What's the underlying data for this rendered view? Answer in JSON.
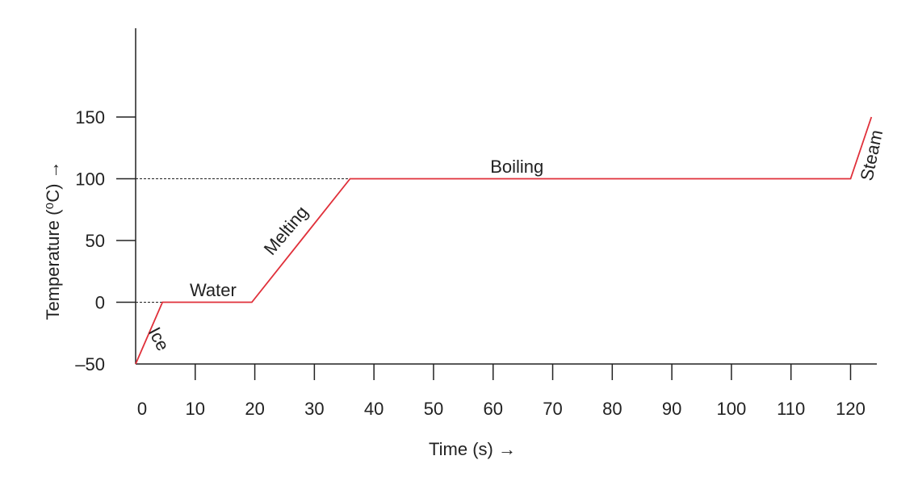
{
  "chart_data": {
    "type": "line",
    "title": "",
    "xlabel": "Time (s) →",
    "ylabel": "Temperature (⁰C) →",
    "xlim": [
      0,
      124
    ],
    "ylim": [
      -50,
      150
    ],
    "x_ticks": [
      "0",
      "10",
      "20",
      "30",
      "40",
      "50",
      "60",
      "70",
      "80",
      "90",
      "100",
      "110",
      "120"
    ],
    "y_ticks": [
      "–50",
      "0",
      "50",
      "100",
      "150"
    ],
    "x_tick_values": [
      0,
      10,
      20,
      30,
      40,
      50,
      60,
      70,
      80,
      90,
      100,
      110,
      120
    ],
    "y_tick_values": [
      -50,
      0,
      50,
      100,
      150
    ],
    "grid": false,
    "series": [
      {
        "color": "#e0303a",
        "x": [
          0,
          4.5,
          19.5,
          36,
          120,
          123.5
        ],
        "y": [
          -50,
          0,
          0,
          100,
          100,
          150
        ]
      }
    ],
    "reference_lines": [
      {
        "y": 0,
        "x_from": 0,
        "x_to": 4.5,
        "style": "dashed"
      },
      {
        "y": 100,
        "x_from": 0,
        "x_to": 36,
        "style": "dashed"
      }
    ],
    "annotations": [
      {
        "text": "Ice",
        "x": 3.0,
        "y": -32
      },
      {
        "text": "Water",
        "x": 13,
        "y": 5
      },
      {
        "text": "Melting",
        "x": 26,
        "y": 55
      },
      {
        "text": "Boiling",
        "x": 64,
        "y": 105
      },
      {
        "text": "Steam",
        "x": 124.5,
        "y": 118
      }
    ]
  }
}
